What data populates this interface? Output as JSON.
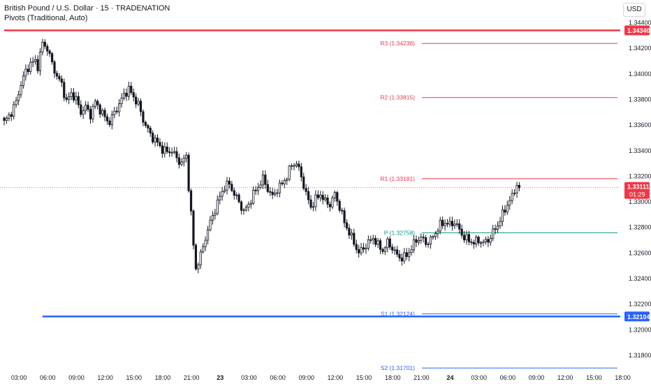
{
  "header": {
    "symbol_title": "British Pound / U.S. Dollar · 15 · TRADENATION",
    "indicator_title": "Pivots (Traditional, Auto)",
    "currency": "USD"
  },
  "colors": {
    "up": "#131722",
    "down": "#131722",
    "resistance": "#f23645",
    "pivot": "#089981",
    "support": "#2962ff",
    "hline_red": "#f23645",
    "hline_blue": "#2962ff",
    "price_badge": "#f23645"
  },
  "chart_data": {
    "type": "candlestick",
    "ylim": [
      1.3168,
      1.3446
    ],
    "y_ticks": [
      "1.34400",
      "1.34200",
      "1.34000",
      "1.33800",
      "1.33600",
      "1.33400",
      "1.33200",
      "1.33000",
      "1.32800",
      "1.32600",
      "1.32400",
      "1.32200",
      "1.32000",
      "1.31800"
    ],
    "x_ticks": [
      {
        "label": "03:00",
        "bar": -2
      },
      {
        "label": "06:00",
        "bar": 10
      },
      {
        "label": "09:00",
        "bar": 22
      },
      {
        "label": "12:00",
        "bar": 34
      },
      {
        "label": "15:00",
        "bar": 46
      },
      {
        "label": "18:00",
        "bar": 58
      },
      {
        "label": "21:00",
        "bar": 70
      },
      {
        "label": "23",
        "bar": 82,
        "bold": true
      },
      {
        "label": "03:00",
        "bar": 94
      },
      {
        "label": "06:00",
        "bar": 106
      },
      {
        "label": "09:00",
        "bar": 118
      },
      {
        "label": "12:00",
        "bar": 130
      },
      {
        "label": "15:00",
        "bar": 142
      },
      {
        "label": "18:00",
        "bar": 154
      },
      {
        "label": "21:00",
        "bar": 166
      },
      {
        "label": "24",
        "bar": 178,
        "bold": true
      },
      {
        "label": "03:00",
        "bar": 190
      },
      {
        "label": "06:00",
        "bar": 202
      },
      {
        "label": "09:00",
        "bar": 214
      },
      {
        "label": "12:00",
        "bar": 226
      },
      {
        "label": "15:00",
        "bar": 238
      },
      {
        "label": "18:00",
        "bar": 250
      }
    ],
    "horizontal_lines": [
      {
        "price": 1.3434,
        "label": "1.34340",
        "color": "#f23645"
      },
      {
        "price": 1.32104,
        "label": "1.32104",
        "color": "#2962ff"
      }
    ],
    "pivots": [
      {
        "name": "R3",
        "label": "R3 (1.34238)",
        "price": 1.34238,
        "kind": "resistance"
      },
      {
        "name": "R2",
        "label": "R2 (1.33815)",
        "price": 1.33815,
        "kind": "resistance"
      },
      {
        "name": "R1",
        "label": "R1 (1.33181)",
        "price": 1.33181,
        "kind": "resistance"
      },
      {
        "name": "P",
        "label": "P (1.32758)",
        "price": 1.32758,
        "kind": "pivot"
      },
      {
        "name": "S1",
        "label": "S1 (1.32124)",
        "price": 1.32124,
        "kind": "support"
      },
      {
        "name": "S2",
        "label": "S2 (1.31701)",
        "price": 1.31701,
        "kind": "support"
      }
    ],
    "last_price": {
      "value": "1.33111",
      "countdown": "01:29",
      "price": 1.33111
    },
    "close_path": [
      [
        0,
        1.3362
      ],
      [
        3,
        1.337
      ],
      [
        5,
        1.3378
      ],
      [
        7,
        1.3392
      ],
      [
        9,
        1.3402
      ],
      [
        11,
        1.3408
      ],
      [
        13,
        1.341
      ],
      [
        14,
        1.3406
      ],
      [
        16,
        1.3424
      ],
      [
        18,
        1.342
      ],
      [
        20,
        1.3408
      ],
      [
        22,
        1.3398
      ],
      [
        24,
        1.3392
      ],
      [
        26,
        1.3378
      ],
      [
        28,
        1.3385
      ],
      [
        30,
        1.338
      ],
      [
        32,
        1.337
      ],
      [
        34,
        1.3374
      ],
      [
        36,
        1.3368
      ],
      [
        38,
        1.3378
      ],
      [
        40,
        1.3372
      ],
      [
        42,
        1.3366
      ],
      [
        44,
        1.3362
      ],
      [
        46,
        1.337
      ],
      [
        48,
        1.3376
      ],
      [
        50,
        1.3384
      ],
      [
        52,
        1.3388
      ],
      [
        54,
        1.3382
      ],
      [
        56,
        1.3376
      ],
      [
        58,
        1.3364
      ],
      [
        60,
        1.3356
      ],
      [
        62,
        1.335
      ],
      [
        64,
        1.3346
      ],
      [
        66,
        1.3341
      ],
      [
        68,
        1.3339
      ],
      [
        70,
        1.334
      ],
      [
        72,
        1.3334
      ],
      [
        74,
        1.333
      ],
      [
        76,
        1.3336
      ],
      [
        77,
        1.3312
      ],
      [
        78,
        1.329
      ],
      [
        79,
        1.3266
      ],
      [
        80,
        1.3248
      ],
      [
        82,
        1.3258
      ],
      [
        84,
        1.3272
      ],
      [
        86,
        1.3284
      ],
      [
        88,
        1.3294
      ],
      [
        90,
        1.3304
      ],
      [
        92,
        1.3312
      ],
      [
        94,
        1.3314
      ],
      [
        96,
        1.3306
      ],
      [
        98,
        1.33
      ],
      [
        100,
        1.3292
      ],
      [
        102,
        1.3298
      ],
      [
        104,
        1.3306
      ],
      [
        106,
        1.3312
      ],
      [
        108,
        1.3318
      ],
      [
        110,
        1.331
      ],
      [
        112,
        1.3304
      ],
      [
        114,
        1.331
      ],
      [
        116,
        1.3314
      ],
      [
        118,
        1.332
      ],
      [
        120,
        1.3329
      ],
      [
        122,
        1.333
      ],
      [
        124,
        1.332
      ],
      [
        126,
        1.3306
      ],
      [
        128,
        1.3296
      ],
      [
        130,
        1.3302
      ],
      [
        132,
        1.3306
      ],
      [
        134,
        1.33
      ],
      [
        136,
        1.3298
      ],
      [
        138,
        1.3306
      ],
      [
        140,
        1.3296
      ],
      [
        142,
        1.3284
      ],
      [
        144,
        1.3276
      ],
      [
        146,
        1.3268
      ],
      [
        148,
        1.326
      ],
      [
        150,
        1.3264
      ],
      [
        152,
        1.3268
      ],
      [
        154,
        1.3272
      ],
      [
        156,
        1.3266
      ],
      [
        158,
        1.3262
      ],
      [
        160,
        1.3268
      ],
      [
        162,
        1.3264
      ],
      [
        164,
        1.3258
      ],
      [
        166,
        1.3256
      ],
      [
        168,
        1.3258
      ],
      [
        170,
        1.3264
      ],
      [
        172,
        1.327
      ],
      [
        174,
        1.3272
      ],
      [
        176,
        1.3268
      ],
      [
        178,
        1.327
      ],
      [
        180,
        1.3276
      ],
      [
        182,
        1.3282
      ],
      [
        184,
        1.3284
      ],
      [
        186,
        1.3282
      ],
      [
        188,
        1.3284
      ],
      [
        190,
        1.3278
      ],
      [
        192,
        1.3272
      ],
      [
        194,
        1.327
      ],
      [
        196,
        1.3268
      ],
      [
        198,
        1.327
      ],
      [
        200,
        1.3268
      ],
      [
        202,
        1.327
      ],
      [
        204,
        1.3276
      ],
      [
        206,
        1.3282
      ],
      [
        208,
        1.329
      ],
      [
        210,
        1.3298
      ],
      [
        212,
        1.3304
      ],
      [
        214,
        1.3314
      ],
      [
        215,
        1.3311
      ]
    ]
  }
}
